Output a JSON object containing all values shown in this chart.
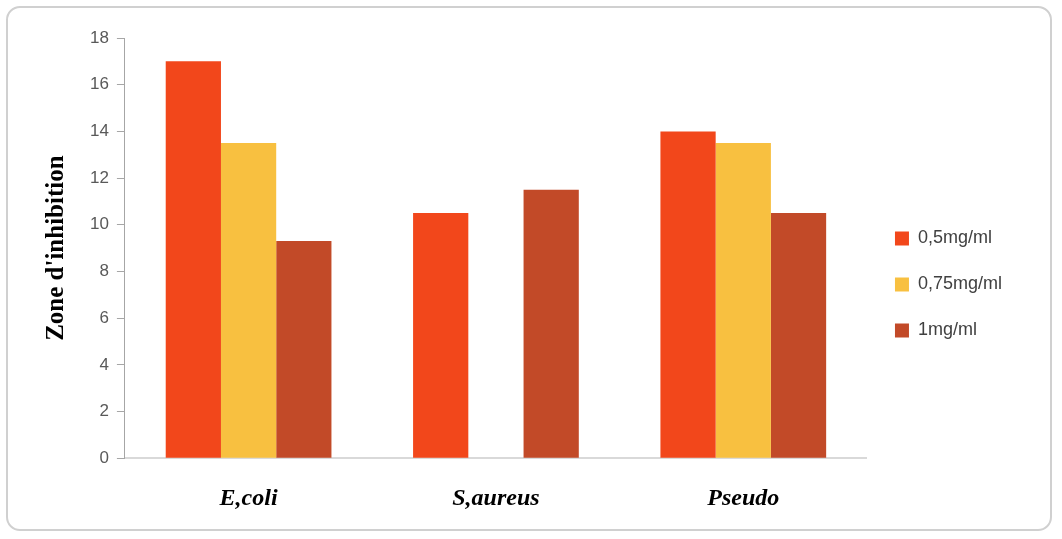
{
  "chart_data": {
    "type": "bar",
    "ylabel": "Zone d'inhibition",
    "categories": [
      "E,coli",
      "S,aureus",
      "Pseudo"
    ],
    "series": [
      {
        "name": "0,5mg/ml",
        "color": "#f2471b",
        "values": [
          17,
          10.5,
          14
        ]
      },
      {
        "name": "0,75mg/ml",
        "color": "#f8c040",
        "values": [
          13.5,
          null,
          13.5
        ]
      },
      {
        "name": "1mg/ml",
        "color": "#c24a28",
        "values": [
          9.3,
          11.5,
          10.5
        ]
      }
    ],
    "ylim": [
      0,
      18
    ],
    "yticks": [
      0,
      2,
      4,
      6,
      8,
      10,
      12,
      14,
      16,
      18
    ],
    "legend": "right"
  }
}
